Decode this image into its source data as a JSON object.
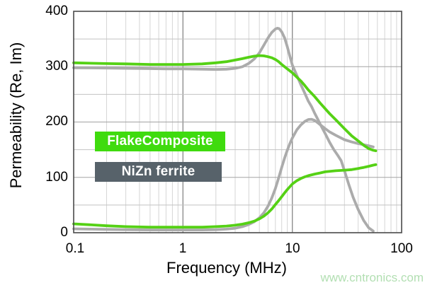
{
  "watermark": {
    "text": "www.cntronics.com",
    "color": "#b2dfb2"
  },
  "legend": {
    "items": [
      {
        "label": "FlakeComposite",
        "bg": "#3fdb0e",
        "text_color": "#ffffff"
      },
      {
        "label": "NiZn ferrite",
        "bg": "#57626a",
        "text_color": "#ffffff"
      }
    ]
  },
  "chart_data": {
    "type": "line",
    "title": "",
    "xlabel": "Frequency (MHz)",
    "ylabel": "Permeability (Re, Im)",
    "x_scale": "log",
    "xlim": [
      0.1,
      100
    ],
    "ylim": [
      0,
      400
    ],
    "grid": "on",
    "legend_position": "inside-left",
    "x_tick_labels": [
      "0.1",
      "1",
      "10",
      "100"
    ],
    "x_tick_values": [
      0.1,
      1,
      10,
      100
    ],
    "y_tick_labels": [
      "400",
      "300",
      "200",
      "100",
      "0"
    ],
    "y_tick_values": [
      400,
      300,
      200,
      100,
      0
    ],
    "y_grid_step": 50,
    "colors": {
      "flake_curve": "#55d115",
      "nizn_curve": "#ababab",
      "grid_minor": "#d6d6d6",
      "grid_major_v": "#8f8f8f",
      "grid_h_major": "#a3a3a3",
      "grid_h_minor": "#c2c2c2",
      "border": "#4a4a4a"
    },
    "series": [
      {
        "name": "NiZn ferrite Re",
        "color": "#ababab",
        "points": [
          [
            0.1,
            298
          ],
          [
            0.2,
            297.5
          ],
          [
            0.3,
            297
          ],
          [
            0.5,
            296.5
          ],
          [
            0.7,
            296
          ],
          [
            1,
            296
          ],
          [
            1.5,
            295.5
          ],
          [
            2,
            295
          ],
          [
            2.5,
            295.5
          ],
          [
            3,
            297
          ],
          [
            3.5,
            300
          ],
          [
            4,
            306
          ],
          [
            4.5,
            314
          ],
          [
            5,
            325
          ],
          [
            5.5,
            339
          ],
          [
            6,
            352
          ],
          [
            6.5,
            362
          ],
          [
            7,
            368
          ],
          [
            7.3,
            369.5
          ],
          [
            7.6,
            368.5
          ],
          [
            8,
            363
          ],
          [
            8.5,
            352
          ],
          [
            9,
            336
          ],
          [
            9.5,
            319
          ],
          [
            10,
            303
          ],
          [
            11,
            284
          ],
          [
            12,
            267
          ],
          [
            13,
            252
          ],
          [
            14,
            238
          ],
          [
            15,
            228
          ],
          [
            16,
            216
          ],
          [
            17,
            206
          ],
          [
            18,
            196
          ],
          [
            20,
            179
          ],
          [
            22,
            163
          ],
          [
            24,
            150
          ],
          [
            26,
            140
          ],
          [
            28,
            130
          ],
          [
            30,
            112
          ],
          [
            33,
            86
          ],
          [
            36,
            64
          ],
          [
            40,
            42
          ],
          [
            45,
            22
          ],
          [
            50,
            9
          ],
          [
            55,
            3
          ]
        ]
      },
      {
        "name": "NiZn ferrite Im",
        "color": "#ababab",
        "points": [
          [
            0.1,
            7
          ],
          [
            0.2,
            6
          ],
          [
            0.3,
            5.5
          ],
          [
            0.5,
            5
          ],
          [
            1,
            5
          ],
          [
            1.5,
            5
          ],
          [
            2,
            5.5
          ],
          [
            2.5,
            6.5
          ],
          [
            3,
            8
          ],
          [
            3.5,
            11
          ],
          [
            4,
            15
          ],
          [
            4.5,
            20
          ],
          [
            5,
            27
          ],
          [
            5.5,
            36
          ],
          [
            6,
            48
          ],
          [
            6.5,
            63
          ],
          [
            7,
            80
          ],
          [
            7.5,
            99
          ],
          [
            8,
            118
          ],
          [
            8.5,
            135
          ],
          [
            9,
            149
          ],
          [
            9.5,
            161
          ],
          [
            10,
            171
          ],
          [
            11,
            186
          ],
          [
            12,
            195
          ],
          [
            13,
            201
          ],
          [
            14,
            204.5
          ],
          [
            15,
            205
          ],
          [
            16,
            203
          ],
          [
            17,
            199
          ],
          [
            18,
            195
          ],
          [
            20,
            188
          ],
          [
            22,
            182
          ],
          [
            25,
            176
          ],
          [
            28,
            171
          ],
          [
            30,
            168
          ],
          [
            35,
            164
          ],
          [
            40,
            161
          ],
          [
            45,
            159
          ],
          [
            50,
            157
          ],
          [
            55,
            155
          ]
        ]
      },
      {
        "name": "FlakeComposite Re",
        "color": "#55d115",
        "points": [
          [
            0.1,
            307
          ],
          [
            0.2,
            305.5
          ],
          [
            0.3,
            305
          ],
          [
            0.5,
            304
          ],
          [
            0.7,
            304
          ],
          [
            1,
            304
          ],
          [
            1.5,
            305
          ],
          [
            2,
            307
          ],
          [
            2.5,
            309
          ],
          [
            3,
            312
          ],
          [
            3.5,
            314.5
          ],
          [
            4,
            317
          ],
          [
            4.5,
            319
          ],
          [
            5,
            320
          ],
          [
            5.5,
            319.5
          ],
          [
            6,
            318
          ],
          [
            6.5,
            316
          ],
          [
            7,
            313
          ],
          [
            7.5,
            309
          ],
          [
            8,
            304
          ],
          [
            9,
            296
          ],
          [
            10,
            289
          ],
          [
            11,
            281
          ],
          [
            12,
            274
          ],
          [
            13,
            266
          ],
          [
            14,
            258
          ],
          [
            15,
            252
          ],
          [
            16,
            246
          ],
          [
            18,
            234
          ],
          [
            20,
            224
          ],
          [
            22,
            215
          ],
          [
            25,
            204
          ],
          [
            28,
            194
          ],
          [
            30,
            188
          ],
          [
            35,
            175
          ],
          [
            40,
            166
          ],
          [
            45,
            158
          ],
          [
            50,
            152
          ],
          [
            55,
            149
          ],
          [
            58,
            148
          ]
        ]
      },
      {
        "name": "FlakeComposite Im",
        "color": "#55d115",
        "points": [
          [
            0.1,
            16
          ],
          [
            0.15,
            14
          ],
          [
            0.2,
            12.5
          ],
          [
            0.3,
            11
          ],
          [
            0.5,
            10
          ],
          [
            0.7,
            10
          ],
          [
            1,
            10
          ],
          [
            1.5,
            10
          ],
          [
            2,
            11
          ],
          [
            2.5,
            12
          ],
          [
            3,
            13.5
          ],
          [
            3.5,
            15.5
          ],
          [
            4,
            18
          ],
          [
            4.5,
            21
          ],
          [
            5,
            25
          ],
          [
            5.5,
            30
          ],
          [
            6,
            36
          ],
          [
            6.5,
            43
          ],
          [
            7,
            51
          ],
          [
            7.5,
            58
          ],
          [
            8,
            65
          ],
          [
            8.5,
            72
          ],
          [
            9,
            78
          ],
          [
            10,
            88
          ],
          [
            11,
            94
          ],
          [
            12,
            98
          ],
          [
            13,
            101
          ],
          [
            14,
            103
          ],
          [
            16,
            106
          ],
          [
            18,
            108
          ],
          [
            20,
            110
          ],
          [
            25,
            112
          ],
          [
            30,
            113
          ],
          [
            35,
            114
          ],
          [
            40,
            116
          ],
          [
            45,
            118
          ],
          [
            50,
            120
          ],
          [
            55,
            122
          ],
          [
            58,
            123
          ]
        ]
      }
    ]
  }
}
